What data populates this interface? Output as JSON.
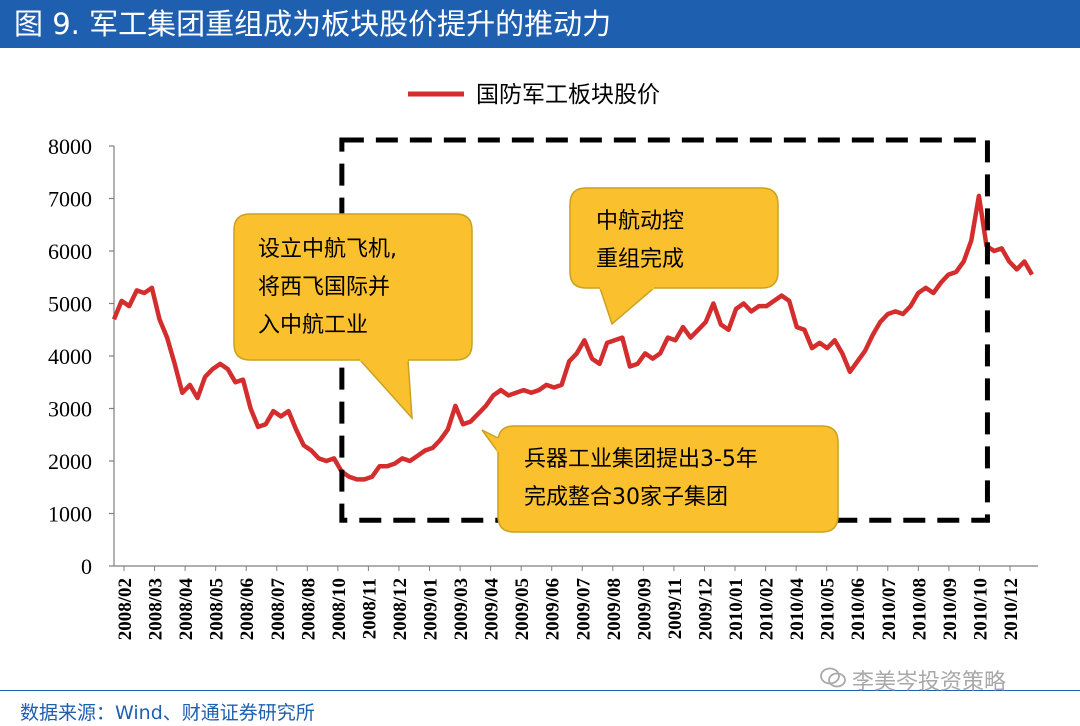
{
  "header": {
    "title": "图 9. 军工集团重组成为板块股价提升的推动力"
  },
  "footer": {
    "source": "数据来源：Wind、财通证券研究所",
    "watermark": "李美岑投资策略",
    "watermark_icon": "wechat-icon"
  },
  "colors": {
    "title_bg": "#1f5fb0",
    "line": "#d42d2d",
    "callout_fill": "#fbc02d",
    "callout_stroke": "#c9a21e"
  },
  "chart_data": {
    "type": "line",
    "title": "",
    "legend": [
      "国防军工板块股价"
    ],
    "legend_position": "top-center",
    "ylim": [
      0,
      8000
    ],
    "yticks": [
      0,
      1000,
      2000,
      3000,
      4000,
      5000,
      6000,
      7000,
      8000
    ],
    "xlabel": "",
    "ylabel": "",
    "grid": false,
    "tick_labels": [
      "2008/02",
      "2008/03",
      "2008/04",
      "2008/05",
      "2008/06",
      "2008/07",
      "2008/08",
      "2008/10",
      "2008/11",
      "2008/12",
      "2009/01",
      "2009/03",
      "2009/04",
      "2009/05",
      "2009/06",
      "2009/07",
      "2009/08",
      "2009/09",
      "2009/11",
      "2009/12",
      "2010/01",
      "2010/02",
      "2010/04",
      "2010/05",
      "2010/06",
      "2010/07",
      "2010/08",
      "2010/09",
      "2010/10",
      "2010/12"
    ],
    "series": [
      {
        "name": "国防军工板块股价",
        "values": [
          4700,
          5050,
          4950,
          5250,
          5200,
          5300,
          4700,
          4350,
          3850,
          3300,
          3450,
          3200,
          3600,
          3750,
          3850,
          3750,
          3500,
          3550,
          3000,
          2650,
          2700,
          2950,
          2850,
          2950,
          2600,
          2300,
          2200,
          2050,
          2000,
          2050,
          1800,
          1700,
          1650,
          1650,
          1700,
          1900,
          1900,
          1950,
          2050,
          2000,
          2100,
          2200,
          2250,
          2400,
          2600,
          3050,
          2700,
          2750,
          2900,
          3050,
          3250,
          3350,
          3250,
          3300,
          3350,
          3300,
          3350,
          3450,
          3400,
          3450,
          3900,
          4050,
          4300,
          3950,
          3850,
          4250,
          4300,
          4350,
          3800,
          3850,
          4050,
          3950,
          4050,
          4350,
          4300,
          4550,
          4350,
          4500,
          4650,
          5000,
          4600,
          4500,
          4900,
          5000,
          4850,
          4950,
          4950,
          5050,
          5150,
          5050,
          4550,
          4500,
          4150,
          4250,
          4150,
          4300,
          4050,
          3700,
          3900,
          4100,
          4400,
          4650,
          4800,
          4850,
          4800,
          4950,
          5200,
          5300,
          5200,
          5400,
          5550,
          5600,
          5800,
          6200,
          7050,
          6100,
          6000,
          6050,
          5800,
          5650,
          5800,
          5550
        ]
      }
    ],
    "annotations": [
      {
        "id": "avic",
        "text": [
          "设立中航飞机,",
          "将西飞国际并",
          "入中航工业"
        ]
      },
      {
        "id": "avic_ctrl",
        "text": [
          "中航动控",
          "重组完成"
        ]
      },
      {
        "id": "norinco",
        "text": [
          "兵器工业集团提出3-5年",
          "完成整合30家子集团"
        ]
      }
    ],
    "highlight_box": {
      "from_label": "2008/10",
      "to_label": "2010/10",
      "y_range": [
        700,
        8000
      ],
      "style": "dashed"
    }
  }
}
